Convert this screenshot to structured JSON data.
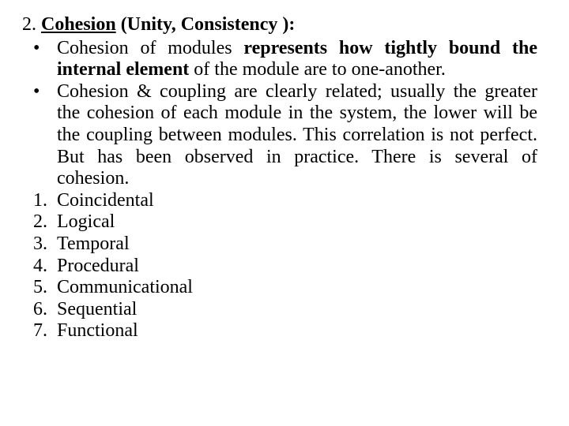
{
  "heading": {
    "number": "2.",
    "term": "Cohesion",
    "paren": "(Unity, Consistency ):"
  },
  "bullets": {
    "b1": {
      "marker": "•",
      "pre": "Cohesion of modules ",
      "bold": "represents how tightly bound the internal element",
      "post": " of the module are to one-another."
    },
    "b2": {
      "marker": "•",
      "text": "Cohesion & coupling are clearly related; usually the greater the cohesion of each module in the system, the lower will be the coupling between modules. This correlation is not perfect. But has been observed in practice. There is several of cohesion."
    }
  },
  "items": {
    "n1": {
      "marker": "1.",
      "text": "Coincidental"
    },
    "n2": {
      "marker": "2.",
      "text": "Logical"
    },
    "n3": {
      "marker": "3.",
      "text": "Temporal"
    },
    "n4": {
      "marker": "4.",
      "text": "Procedural"
    },
    "n5": {
      "marker": "5.",
      "text": "Communicational"
    },
    "n6": {
      "marker": "6.",
      "text": "Sequential"
    },
    "n7": {
      "marker": "7.",
      "text": "Functional"
    }
  }
}
